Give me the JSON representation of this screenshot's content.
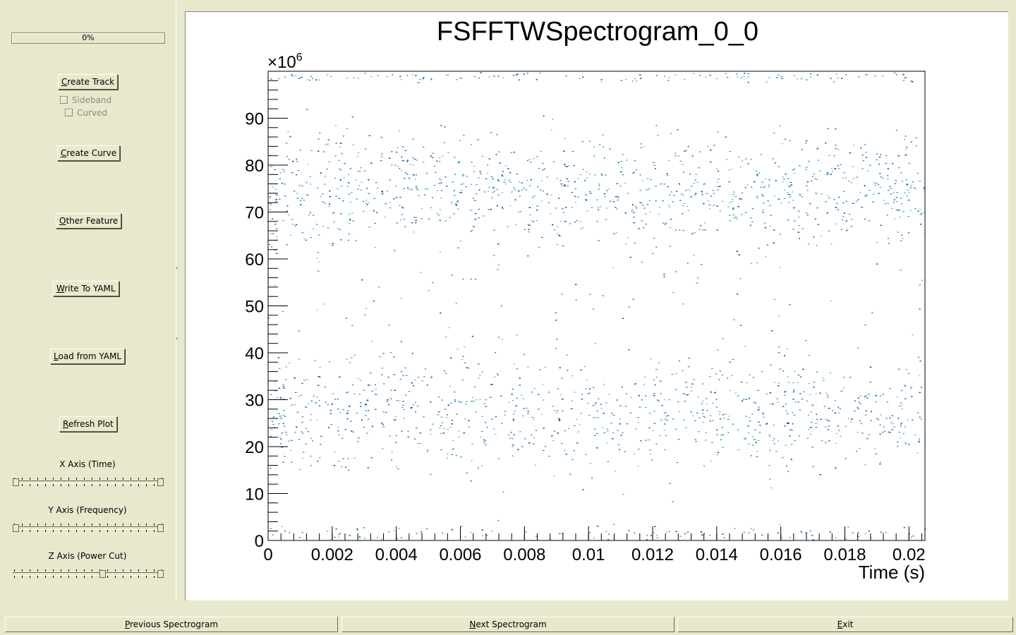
{
  "sidebar": {
    "progress_text": "0%",
    "buttons": {
      "create_track": {
        "u": "C",
        "rest": "reate Track"
      },
      "create_curve": {
        "u": "C",
        "rest": "reate Curve"
      },
      "other_feature": {
        "u": "O",
        "rest": "ther Feature"
      },
      "write_yaml": {
        "u": "W",
        "rest": "rite To YAML"
      },
      "load_yaml": {
        "u": "L",
        "rest": "oad from YAML"
      },
      "refresh_plot": {
        "u": "R",
        "rest": "efresh Plot"
      }
    },
    "checkboxes": {
      "sideband": {
        "label": "Sideband",
        "checked": false,
        "enabled": false
      },
      "curved": {
        "label": "Curved",
        "checked": false,
        "enabled": false
      }
    },
    "sliders": {
      "x_axis": {
        "label": "X Axis (Time)",
        "low": 0.0,
        "high": 1.0
      },
      "y_axis": {
        "label": "Y Axis (Frequency)",
        "low": 0.0,
        "high": 1.0
      },
      "z_axis": {
        "label": "Z Axis (Power Cut)",
        "low": 0.6,
        "high": 1.0
      }
    }
  },
  "bottom": {
    "previous": {
      "u": "P",
      "rest": "revious Spectrogram"
    },
    "next": {
      "u": "N",
      "rest": "ext Spectrogram"
    },
    "exit": {
      "u": "E",
      "rest": "xit"
    }
  },
  "chart_data": {
    "type": "heatmap",
    "title": "FSFFTWSpectrogram_0_0",
    "xlabel": "Time (s)",
    "ylabel": "",
    "y_multiplier_label": "×10",
    "y_multiplier_exp": "6",
    "xlim": [
      0,
      0.0205
    ],
    "ylim": [
      0,
      100
    ],
    "x_ticks": [
      0,
      0.002,
      0.004,
      0.006,
      0.008,
      0.01,
      0.012,
      0.014,
      0.016,
      0.018,
      0.02
    ],
    "x_tick_labels": [
      "0",
      "0.002",
      "0.004",
      "0.006",
      "0.008",
      "0.01",
      "0.012",
      "0.014",
      "0.016",
      "0.018",
      "0.02"
    ],
    "y_ticks": [
      0,
      10,
      20,
      30,
      40,
      50,
      60,
      70,
      80,
      90
    ],
    "y_tick_labels": [
      "0",
      "10",
      "20",
      "30",
      "40",
      "50",
      "60",
      "70",
      "80",
      "90"
    ],
    "point_colors": [
      "#1d6fa8",
      "#2596be",
      "#0b3d91",
      "#33a7a0"
    ],
    "density_bands": [
      {
        "y_center": 75,
        "y_spread": 10,
        "weight": 0.42
      },
      {
        "y_center": 27,
        "y_spread": 10,
        "weight": 0.38
      },
      {
        "y_center": 50,
        "y_spread": 30,
        "weight": 0.1
      },
      {
        "y_center": 99,
        "y_spread": 1,
        "weight": 0.05
      },
      {
        "y_center": 1.5,
        "y_spread": 1.5,
        "weight": 0.05
      }
    ],
    "approx_point_count": 9000
  }
}
